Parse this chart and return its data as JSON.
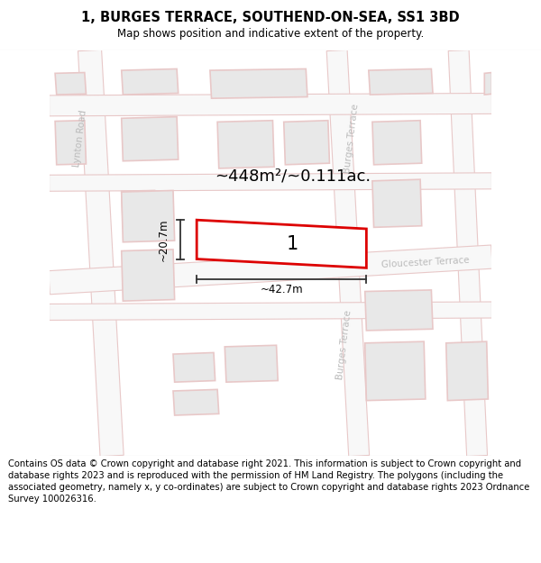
{
  "title": "1, BURGES TERRACE, SOUTHEND-ON-SEA, SS1 3BD",
  "subtitle": "Map shows position and indicative extent of the property.",
  "footer": "Contains OS data © Crown copyright and database right 2021. This information is subject to Crown copyright and database rights 2023 and is reproduced with the permission of HM Land Registry. The polygons (including the associated geometry, namely x, y co-ordinates) are subject to Crown copyright and database rights 2023 Ordnance Survey 100026316.",
  "map_bg": "#f7f7f7",
  "road_fill": "#f0f0f0",
  "road_edge": "#e8c8c8",
  "block_fill": "#e8e8e8",
  "block_edge": "#e8c8c8",
  "prop_fill": "#ffffff",
  "prop_edge": "#dd0000",
  "prop_label": "1",
  "area_text": "~448m²/~0.111ac.",
  "dim_w": "~42.7m",
  "dim_h": "~20.7m",
  "title_fs": 10.5,
  "subtitle_fs": 8.5,
  "footer_fs": 7.2,
  "road_label_color": "#bbbbbb",
  "road_label_fs": 7.5
}
